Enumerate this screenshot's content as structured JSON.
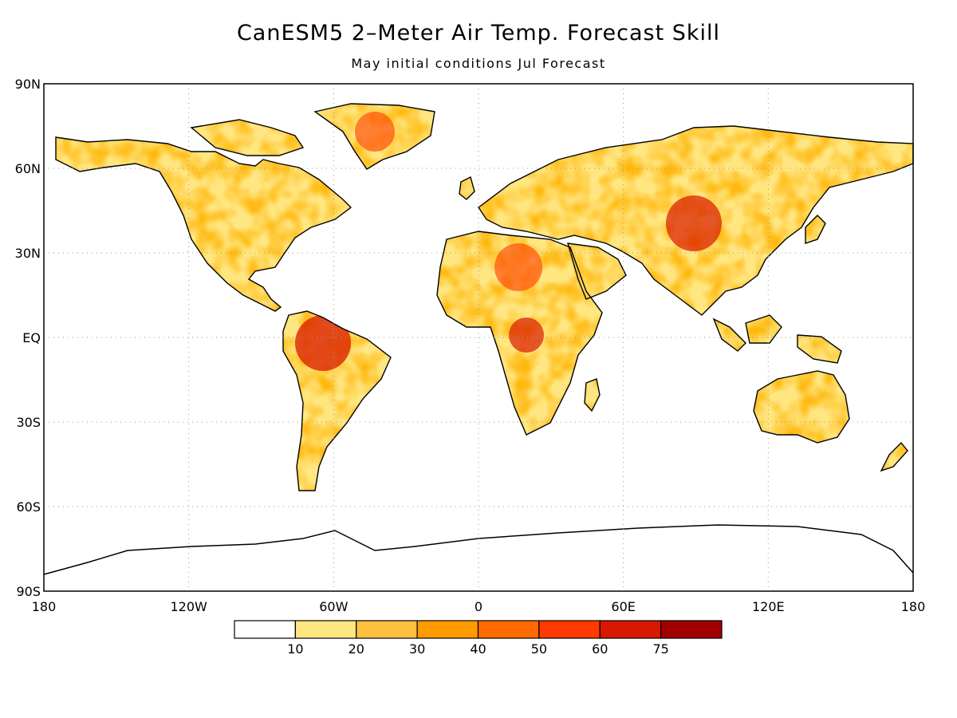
{
  "title": "CanESM5 2–Meter Air Temp. Forecast Skill",
  "subtitle": "May initial conditions  Jul Forecast",
  "map": {
    "projection": "equirectangular",
    "lon_range": [
      -180,
      180
    ],
    "lat_range": [
      -90,
      90
    ],
    "grid": "dotted",
    "lat_ticks": [
      {
        "value": 90,
        "label": "90N"
      },
      {
        "value": 60,
        "label": "60N"
      },
      {
        "value": 30,
        "label": "30N"
      },
      {
        "value": 0,
        "label": "EQ"
      },
      {
        "value": -30,
        "label": "30S"
      },
      {
        "value": -60,
        "label": "60S"
      },
      {
        "value": -90,
        "label": "90S"
      }
    ],
    "lon_ticks": [
      {
        "value": -180,
        "label": "180"
      },
      {
        "value": -120,
        "label": "120W"
      },
      {
        "value": -60,
        "label": "60W"
      },
      {
        "value": 0,
        "label": "0"
      },
      {
        "value": 60,
        "label": "60E"
      },
      {
        "value": 120,
        "label": "120E"
      },
      {
        "value": 180,
        "label": "180"
      }
    ]
  },
  "colorbar": {
    "bins": [
      {
        "color": "#ffffff"
      },
      {
        "color": "#ffe680"
      },
      {
        "color": "#ffc040"
      },
      {
        "color": "#ff9a00"
      },
      {
        "color": "#ff6a00"
      },
      {
        "color": "#ff3a00"
      },
      {
        "color": "#d81800"
      },
      {
        "color": "#a00000"
      }
    ],
    "labels": [
      "10",
      "20",
      "30",
      "40",
      "50",
      "60",
      "75"
    ]
  }
}
